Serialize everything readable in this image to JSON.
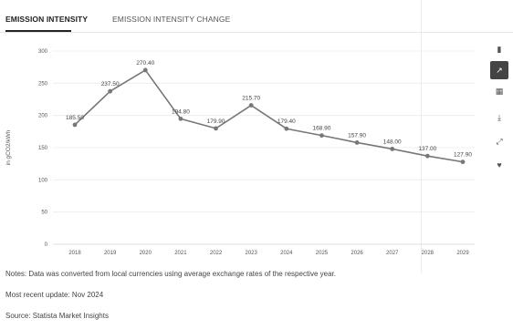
{
  "tabs": [
    {
      "label": "EMISSION INTENSITY",
      "active": true
    },
    {
      "label": "EMISSION INTENSITY CHANGE",
      "active": false
    }
  ],
  "toolbar": {
    "items": [
      {
        "name": "bar-chart-icon",
        "glyph": "▮",
        "active": false
      },
      {
        "name": "line-chart-icon",
        "glyph": "↗",
        "active": true
      },
      {
        "name": "table-icon",
        "glyph": "▦",
        "active": false
      },
      {
        "name": "download-icon",
        "glyph": "⤓",
        "active": false
      },
      {
        "name": "expand-icon",
        "glyph": "⤢",
        "active": false
      },
      {
        "name": "favorite-icon",
        "glyph": "♥",
        "active": false
      }
    ]
  },
  "chart_data": {
    "type": "line",
    "ylabel": "in gCO2/kWh",
    "ylim": [
      0,
      300
    ],
    "yticks": [
      0,
      50,
      100,
      150,
      200,
      250,
      300
    ],
    "categories": [
      "2018",
      "2019",
      "2020",
      "2021",
      "2022",
      "2023",
      "2024",
      "2025",
      "2026",
      "2027",
      "2028",
      "2029"
    ],
    "series": [
      {
        "values": [
          185.5,
          237.5,
          270.4,
          194.8,
          179.9,
          215.7,
          179.4,
          168.9,
          157.9,
          148.0,
          137.0,
          127.9
        ],
        "labels": [
          "185.50",
          "237.50",
          "270.40",
          "194.80",
          "179.90",
          "215.70",
          "179.40",
          "168.90",
          "157.90",
          "148.00",
          "137.00",
          "127.90"
        ],
        "color": "#777777"
      }
    ],
    "grid": true,
    "legend": "none"
  },
  "notes": {
    "line1": "Notes: Data was converted from local currencies using average exchange rates of the respective year.",
    "line2": "Most recent update: Nov 2024",
    "line3": "Source: Statista Market Insights"
  }
}
